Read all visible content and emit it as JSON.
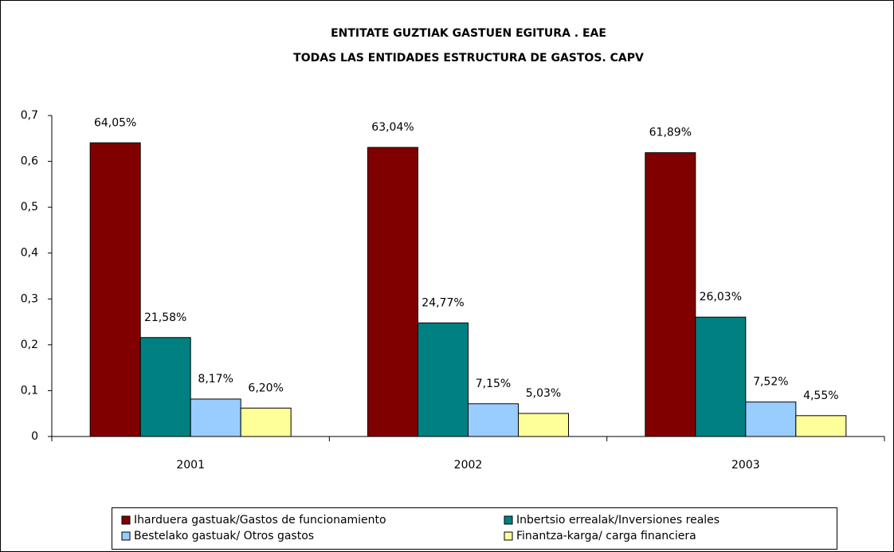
{
  "chart_data": {
    "type": "bar",
    "title": "ENTITATE GUZTIAK GASTUEN EGITURA . EAE",
    "subtitle": "TODAS LAS ENTIDADES ESTRUCTURA DE GASTOS. CAPV",
    "categories": [
      "2001",
      "2002",
      "2003"
    ],
    "series": [
      {
        "name": "Iharduera gastuak/Gastos de funcionamiento",
        "color": "#800000",
        "values": [
          0.6405,
          0.6304,
          0.6189
        ],
        "value_labels": [
          "64,05%",
          "63,04%",
          "61,89%"
        ]
      },
      {
        "name": "Inbertsio errealak/Inversiones reales",
        "color": "#008080",
        "values": [
          0.2158,
          0.2477,
          0.2603
        ],
        "value_labels": [
          "21,58%",
          "24,77%",
          "26,03%"
        ]
      },
      {
        "name": "Bestelako gastuak/ Otros gastos",
        "color": "#99ccff",
        "values": [
          0.0817,
          0.0715,
          0.0752
        ],
        "value_labels": [
          "8,17%",
          "7,15%",
          "7,52%"
        ]
      },
      {
        "name": "Finantza-karga/ carga financiera",
        "color": "#ffff99",
        "values": [
          0.062,
          0.0503,
          0.0455
        ],
        "value_labels": [
          "6,20%",
          "5,03%",
          "4,55%"
        ]
      }
    ],
    "ylim": [
      0,
      0.7
    ],
    "yticks": [
      0,
      {
        "value": 0.1,
        "label": "0,1"
      },
      {
        "value": 0.2,
        "label": "0,2"
      },
      {
        "value": 0.3,
        "label": "0,3"
      },
      {
        "value": 0.4,
        "label": "0,4"
      },
      {
        "value": 0.5,
        "label": "0,5"
      },
      {
        "value": 0.6,
        "label": "0,6"
      },
      {
        "value": 0.7,
        "label": "0,7"
      }
    ],
    "grid": false
  }
}
